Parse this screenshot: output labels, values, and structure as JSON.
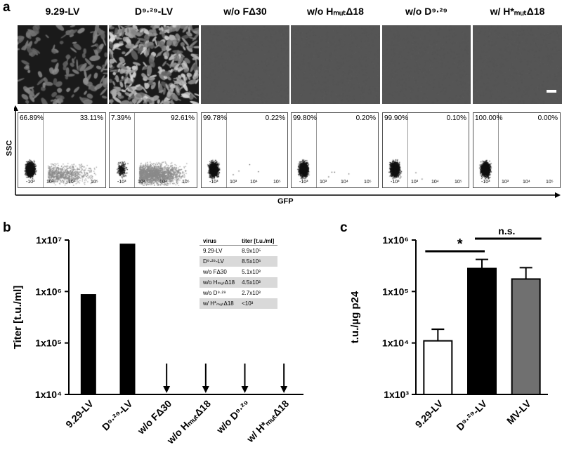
{
  "panel_a": {
    "label": "a",
    "columns": [
      {
        "title": "9.29-LV",
        "gfp_neg": "66.89%",
        "gfp_pos": "33.11%",
        "neg_cells": 1500,
        "pos_cells": 900,
        "brightness": 0.35
      },
      {
        "title": "D⁹·²⁹-LV",
        "gfp_neg": "7.39%",
        "gfp_pos": "92.61%",
        "neg_cells": 250,
        "pos_cells": 2200,
        "brightness": 0.85
      },
      {
        "title": "w/o FΔ30",
        "gfp_neg": "99.78%",
        "gfp_pos": "0.22%",
        "neg_cells": 1600,
        "pos_cells": 4,
        "brightness": 0
      },
      {
        "title": "w/o HₘᵤₜΔ18",
        "gfp_neg": "99.80%",
        "gfp_pos": "0.20%",
        "neg_cells": 1600,
        "pos_cells": 4,
        "brightness": 0
      },
      {
        "title": "w/o D⁹·²⁹",
        "gfp_neg": "99.90%",
        "gfp_pos": "0.10%",
        "neg_cells": 1600,
        "pos_cells": 2,
        "brightness": 0
      },
      {
        "title": "w/ H*ₘᵤₜΔ18",
        "gfp_neg": "100.00%",
        "gfp_pos": "0.00%",
        "neg_cells": 1600,
        "pos_cells": 0,
        "brightness": 0
      }
    ],
    "y_axis_label": "SSC",
    "x_axis_label": "GFP",
    "x_ticks": [
      "-10³",
      "10³",
      "10⁴",
      "10⁵"
    ]
  },
  "panel_b": {
    "label": "b",
    "ylabel": "Titer [t.u./ml]",
    "y_ticks": [
      "1x10⁷",
      "1x10⁶",
      "1x10⁵",
      "1x10⁴"
    ],
    "table": {
      "headers": [
        "virus",
        "titer [t.u./ml]"
      ],
      "rows": [
        [
          "9.29-LV",
          "8.9x10⁵"
        ],
        [
          "D⁹·²⁹-LV",
          "8.5x10⁶"
        ],
        [
          "w/o FΔ30",
          "5.1x10³"
        ],
        [
          "w/o HₘᵤₜΔ18",
          "4.5x10³"
        ],
        [
          "w/o D⁹·²⁹",
          "2.7x10³"
        ],
        [
          "w/ H*ₘᵤₜΔ18",
          "<10³"
        ]
      ]
    }
  },
  "panel_c": {
    "label": "c",
    "ylabel": "t.u./µg p24",
    "y_ticks": [
      "1x10⁶",
      "1x10⁵",
      "1x10⁴",
      "1x10³"
    ],
    "sig_star": "*",
    "sig_ns": "n.s."
  },
  "chart_data": [
    {
      "type": "bar",
      "panel": "b",
      "ylabel": "Titer [t.u./ml]",
      "log_scale": true,
      "ylim": [
        10000,
        10000000
      ],
      "categories": [
        "9.29-LV",
        "D⁹·²⁹-LV",
        "w/o FΔ30",
        "w/o HₘᵤₜΔ18",
        "w/o D⁹·²⁹",
        "w/ H*ₘᵤₜΔ18"
      ],
      "values": [
        890000,
        8500000,
        5100,
        4500,
        2700,
        1000
      ],
      "below_axis": [
        false,
        false,
        true,
        true,
        true,
        true
      ]
    },
    {
      "type": "bar",
      "panel": "c",
      "ylabel": "t.u./µg p24",
      "log_scale": true,
      "ylim": [
        1000,
        1000000
      ],
      "categories": [
        "9.29-LV",
        "D⁹·²⁹-LV",
        "MV-LV"
      ],
      "values": [
        11000,
        280000,
        175000
      ],
      "error_upper": [
        18500,
        420000,
        290000
      ],
      "fills": [
        "#ffffff",
        "#000000",
        "#707070"
      ]
    }
  ]
}
